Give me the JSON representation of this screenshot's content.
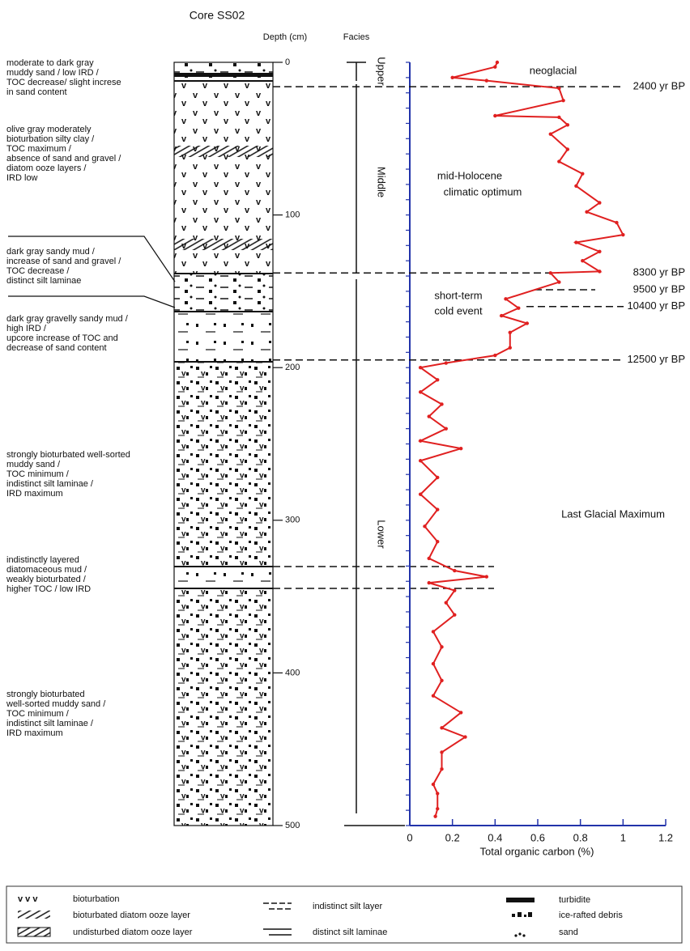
{
  "chart_data": {
    "type": "line",
    "title": "Core SS02",
    "depth_axis_title": "Depth (cm)",
    "facies_title": "Facies",
    "facies": [
      "Upper",
      "Middle",
      "Lower"
    ],
    "x_label": "Total organic carbon (%)",
    "depth_lim": [
      0,
      500
    ],
    "depth_ticks": [
      0,
      100,
      200,
      300,
      400,
      500
    ],
    "toc_lim": [
      0,
      1.2
    ],
    "toc_ticks": [
      0,
      0.2,
      0.4,
      0.6,
      0.8,
      1,
      1.2
    ],
    "color": "#e02020",
    "x": [
      0,
      3,
      10,
      12,
      17,
      25,
      35,
      36,
      41,
      47,
      57,
      65,
      73,
      81,
      92,
      98,
      105,
      113,
      118,
      124,
      130,
      137,
      138,
      144,
      155,
      161,
      166,
      171,
      177,
      187,
      192,
      197,
      200,
      208,
      216,
      224,
      232,
      240,
      248,
      253,
      261,
      272,
      283,
      293,
      304,
      314,
      325,
      333,
      337,
      341,
      346,
      354,
      362,
      373,
      383,
      394,
      405,
      415,
      426,
      436,
      442,
      452,
      463,
      473,
      479,
      489,
      494
    ],
    "values": [
      0.41,
      0.4,
      0.2,
      0.36,
      0.7,
      0.72,
      0.4,
      0.7,
      0.74,
      0.66,
      0.74,
      0.7,
      0.81,
      0.78,
      0.89,
      0.83,
      0.97,
      1.0,
      0.78,
      0.89,
      0.81,
      0.89,
      0.66,
      0.7,
      0.45,
      0.51,
      0.43,
      0.55,
      0.47,
      0.47,
      0.4,
      0.17,
      0.05,
      0.13,
      0.05,
      0.15,
      0.09,
      0.17,
      0.05,
      0.24,
      0.05,
      0.13,
      0.05,
      0.13,
      0.07,
      0.13,
      0.09,
      0.21,
      0.36,
      0.09,
      0.21,
      0.17,
      0.21,
      0.11,
      0.15,
      0.11,
      0.15,
      0.11,
      0.24,
      0.15,
      0.26,
      0.15,
      0.15,
      0.11,
      0.13,
      0.13,
      0.12
    ],
    "age_markers": [
      {
        "label": "2400 yr BP",
        "depth": 16
      },
      {
        "label": "8300 yr BP",
        "depth": 138
      },
      {
        "label": "9500 yr BP",
        "depth": 149
      },
      {
        "label": "10400 yr BP",
        "depth": 160
      },
      {
        "label": "12500 yr BP",
        "depth": 195
      }
    ],
    "annotations": [
      "neoglacial",
      "mid-Holocene",
      "climatic optimum",
      "short-term",
      "cold event",
      "Last Glacial Maximum"
    ],
    "descriptions": [
      [
        "moderate to dark gray",
        "muddy sand / low IRD /",
        "TOC decrease/ slight increse",
        "in sand content"
      ],
      [
        "olive gray moderately",
        "bioturbation silty clay /",
        "TOC maximum /",
        "absence of sand and gravel /",
        "diatom ooze layers /",
        "IRD low"
      ],
      [
        "dark gray sandy mud /",
        "increase of sand and gravel /",
        "TOC decrease /",
        "distinct silt laminae"
      ],
      [
        "dark gray gravelly sandy mud /",
        "high IRD /",
        "upcore increase of TOC and",
        "decrease of sand content"
      ],
      [
        "strongly bioturbated well-sorted",
        "muddy sand /",
        "TOC minimum /",
        "indistinct silt laminae /",
        "IRD maximum"
      ],
      [
        "indistinctly layered",
        "diatomaceous mud /",
        "weakly bioturbated /",
        "higher TOC / low IRD"
      ],
      [
        "strongly bioturbated",
        "well-sorted muddy sand /",
        "TOC minimum /",
        "indistinct silt laminae /",
        "IRD maximum"
      ]
    ],
    "legend": [
      "bioturbation",
      "bioturbated diatom ooze layer",
      "undisturbed diatom ooze layer",
      "indistinct silt layer",
      "distinct silt laminae",
      "turbidite",
      "ice-rafted debris",
      "sand"
    ]
  }
}
